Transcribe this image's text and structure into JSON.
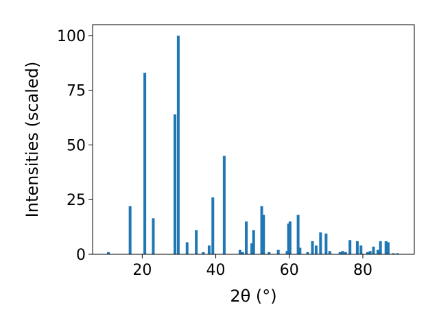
{
  "chart_data": {
    "type": "bar",
    "xlabel": "2θ (°)",
    "ylabel": "Intensities (scaled)",
    "xlim": [
      6.5,
      94
    ],
    "ylim": [
      0,
      105
    ],
    "xticks": [
      20,
      40,
      60,
      80
    ],
    "yticks": [
      0,
      25,
      50,
      75,
      100
    ],
    "bar_color": "#1f77b4",
    "grid": false,
    "x": [
      10.8,
      16.7,
      20.7,
      23.0,
      28.9,
      29.8,
      32.2,
      34.7,
      36.6,
      38.2,
      39.2,
      42.3,
      46.6,
      47.3,
      48.3,
      49.8,
      50.3,
      52.5,
      53.0,
      54.5,
      57.0,
      59.4,
      59.8,
      60.2,
      62.4,
      62.9,
      65.0,
      66.3,
      67.3,
      68.5,
      70.0,
      71.0,
      73.8,
      74.5,
      75.3,
      76.5,
      78.5,
      79.5,
      81.3,
      82.0,
      82.9,
      84.1,
      84.8,
      86.3,
      86.9,
      88.3,
      89.4
    ],
    "values": [
      1.0,
      22.0,
      83.0,
      16.5,
      64.0,
      100.0,
      5.5,
      11.0,
      1.0,
      4.0,
      26.0,
      45.0,
      2.0,
      1.0,
      15.0,
      5.0,
      11.0,
      22.0,
      18.0,
      1.0,
      2.0,
      1.5,
      14.0,
      15.0,
      18.0,
      3.0,
      1.0,
      6.0,
      4.0,
      10.0,
      9.5,
      1.5,
      1.0,
      1.5,
      1.0,
      6.5,
      6.0,
      4.0,
      1.0,
      1.5,
      3.5,
      2.0,
      6.0,
      6.0,
      5.5,
      0.5,
      0.5
    ]
  }
}
